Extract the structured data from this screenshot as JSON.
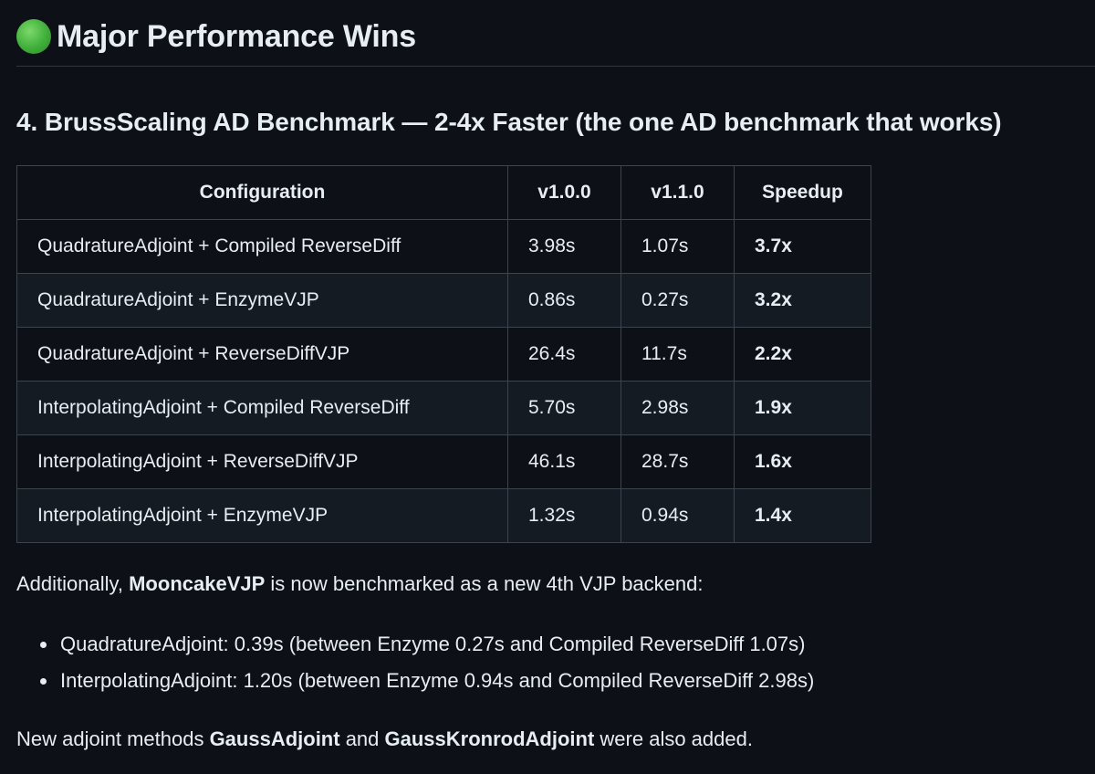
{
  "heading": {
    "icon": "green-circle-icon",
    "icon_color": "#3fae3a",
    "title": "Major Performance Wins"
  },
  "section": {
    "title": "4. BrussScaling AD Benchmark — 2-4x Faster (the one AD benchmark that works)"
  },
  "table": {
    "headers": [
      "Configuration",
      "v1.0.0",
      "v1.1.0",
      "Speedup"
    ],
    "rows": [
      [
        "QuadratureAdjoint + Compiled ReverseDiff",
        "3.98s",
        "1.07s",
        "3.7x"
      ],
      [
        "QuadratureAdjoint + EnzymeVJP",
        "0.86s",
        "0.27s",
        "3.2x"
      ],
      [
        "QuadratureAdjoint + ReverseDiffVJP",
        "26.4s",
        "11.7s",
        "2.2x"
      ],
      [
        "InterpolatingAdjoint + Compiled ReverseDiff",
        "5.70s",
        "2.98s",
        "1.9x"
      ],
      [
        "InterpolatingAdjoint + ReverseDiffVJP",
        "46.1s",
        "28.7s",
        "1.6x"
      ],
      [
        "InterpolatingAdjoint + EnzymeVJP",
        "1.32s",
        "0.94s",
        "1.4x"
      ]
    ]
  },
  "additional": {
    "prefix": "Additionally, ",
    "bold": "MooncakeVJP",
    "suffix": " is now benchmarked as a new 4th VJP backend:"
  },
  "bullets": [
    "QuadratureAdjoint: 0.39s (between Enzyme 0.27s and Compiled ReverseDiff 1.07s)",
    "InterpolatingAdjoint: 1.20s (between Enzyme 0.94s and Compiled ReverseDiff 2.98s)"
  ],
  "closing": {
    "prefix": "New adjoint methods ",
    "bold1": "GaussAdjoint",
    "middle": " and ",
    "bold2": "GaussKronrodAdjoint",
    "suffix": " were also added."
  }
}
